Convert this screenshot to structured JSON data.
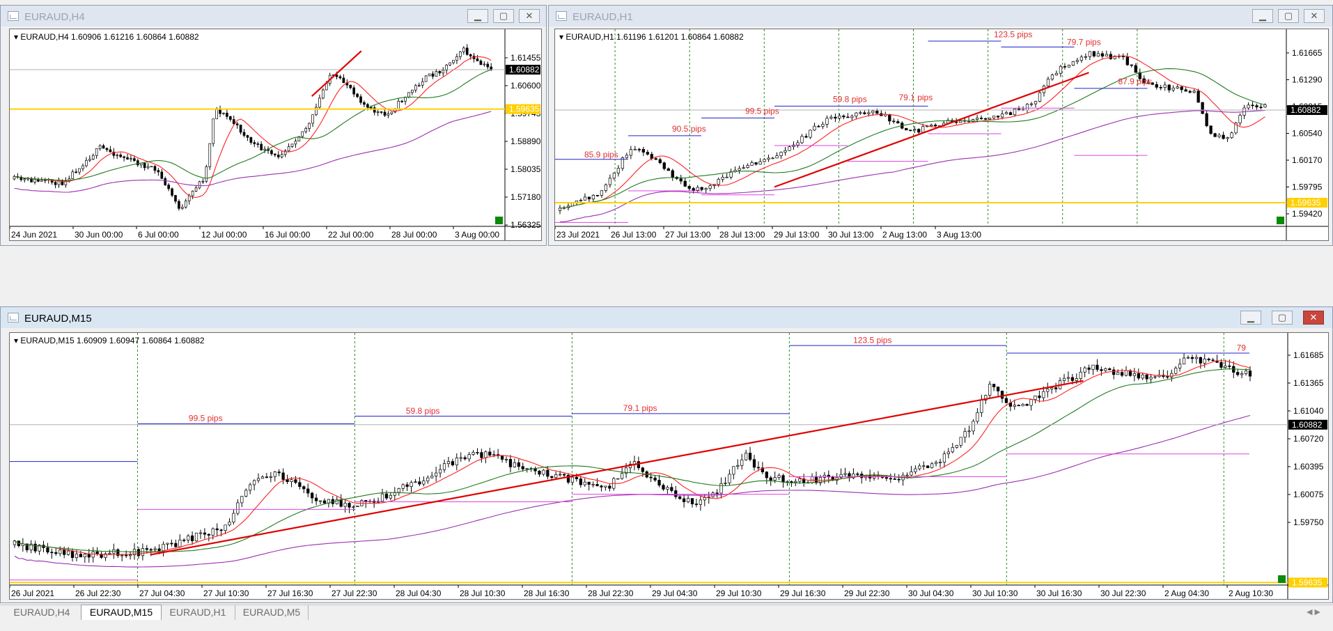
{
  "windows": {
    "h4": {
      "title": "EURAUD,H4",
      "info": "EURAUD,H4  1.60906 1.61216 1.60864 1.60882",
      "y_labels": [
        "1.61455",
        "1.60600",
        "1.59745",
        "1.58890",
        "1.58035",
        "1.57180",
        "1.56325"
      ],
      "x_labels": [
        "24 Jun 2021",
        "30 Jun 00:00",
        "6 Jul 00:00",
        "12 Jul 00:00",
        "16 Jul 00:00",
        "22 Jul 00:00",
        "28 Jul 00:00",
        "3 Aug 00:00"
      ],
      "bid_tag": "1.60882",
      "level_tag": "1.59635"
    },
    "h1": {
      "title": "EURAUD,H1",
      "info": "EURAUD,H1  1.61196 1.61201 1.60864 1.60882",
      "y_labels": [
        "1.61665",
        "1.61290",
        "1.60915",
        "1.60540",
        "1.60170",
        "1.59795",
        "1.59420"
      ],
      "x_labels": [
        "23 Jul 2021",
        "26 Jul 13:00",
        "27 Jul 13:00",
        "28 Jul 13:00",
        "29 Jul 13:00",
        "30 Jul 13:00",
        "2 Aug 13:00",
        "3 Aug 13:00"
      ],
      "bid_tag": "1.60882",
      "level_tag": "1.59635",
      "pip_labels": [
        "85.9 pips",
        "90.5 pips",
        "99.5 pips",
        "59.8 pips",
        "79.1 pips",
        "123.5 pips",
        "79.7 pips",
        "87.9 pips"
      ]
    },
    "m15": {
      "title": "EURAUD,M15",
      "info": "EURAUD,M15  1.60909 1.60947 1.60864 1.60882",
      "y_labels": [
        "1.61685",
        "1.61365",
        "1.61040",
        "1.60720",
        "1.60395",
        "1.60075",
        "1.59750"
      ],
      "x_labels": [
        "26 Jul 2021",
        "26 Jul 22:30",
        "27 Jul 04:30",
        "27 Jul 10:30",
        "27 Jul 16:30",
        "27 Jul 22:30",
        "28 Jul 04:30",
        "28 Jul 10:30",
        "28 Jul 16:30",
        "28 Jul 22:30",
        "29 Jul 04:30",
        "29 Jul 10:30",
        "29 Jul 16:30",
        "29 Jul 22:30",
        "30 Jul 04:30",
        "30 Jul 10:30",
        "30 Jul 16:30",
        "30 Jul 22:30",
        "2 Aug 04:30",
        "2 Aug 10:30"
      ],
      "bid_tag": "1.60882",
      "level_tag": "1.59635",
      "pip_labels": [
        "99.5 pips",
        "59.8 pips",
        "79.1 pips",
        "123.5 pips",
        "79"
      ]
    }
  },
  "tabs": [
    "EURAUD,H4",
    "EURAUD,M15",
    "EURAUD,H1",
    "EURAUD,M5"
  ],
  "active_tab": "EURAUD,M15",
  "colors": {
    "candle": "#000000",
    "ma_fast": "#ff2020",
    "ma_mid": "#1f7a1f",
    "ma_slow": "#9b2fb0",
    "level": "#ffd000",
    "trend": "#e00000",
    "range_top": "#2020c8",
    "range_bottom": "#e040e0",
    "session": "#2a8a2a"
  }
}
